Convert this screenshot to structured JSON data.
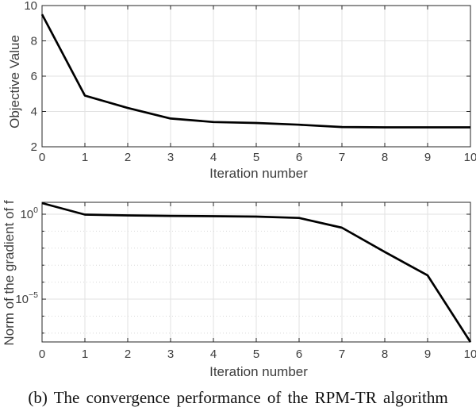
{
  "caption": "(b) The convergence performance of the RPM-TR algorithm",
  "colors": {
    "background": "#ffffff",
    "line": "#000000",
    "frame": "#262626",
    "grid_major": "#e2e2e2",
    "grid_minor": "#d9d9d9",
    "tick_text": "#3d3d3d",
    "label_text": "#3d3d3d"
  },
  "chart_data": [
    {
      "type": "line",
      "title": "",
      "xlabel": "Iteration number",
      "ylabel": "Objective Value",
      "yscale": "linear",
      "x": [
        0,
        1,
        2,
        3,
        4,
        5,
        6,
        7,
        8,
        9,
        10
      ],
      "values": [
        9.5,
        4.9,
        4.2,
        3.6,
        3.4,
        3.35,
        3.25,
        3.12,
        3.1,
        3.1,
        3.1
      ],
      "xlim": [
        0,
        10
      ],
      "ylim": [
        2,
        10
      ],
      "xticks": [
        0,
        1,
        2,
        3,
        4,
        5,
        6,
        7,
        8,
        9,
        10
      ],
      "yticks": [
        2,
        4,
        6,
        8,
        10
      ],
      "grid": "major"
    },
    {
      "type": "line",
      "title": "",
      "xlabel": "Iteration number",
      "ylabel": "Norm of the gradient of f",
      "yscale": "log",
      "x": [
        0,
        1,
        2,
        3,
        4,
        5,
        6,
        7,
        8,
        9,
        10
      ],
      "values": [
        4.5,
        0.95,
        0.85,
        0.8,
        0.76,
        0.72,
        0.6,
        0.16,
        0.006,
        0.00025,
        3e-08
      ],
      "xlim": [
        0,
        10
      ],
      "ylim_log10": [
        -7.52,
        0.7
      ],
      "xticks": [
        0,
        1,
        2,
        3,
        4,
        5,
        6,
        7,
        8,
        9,
        10
      ],
      "yticks_major": [
        {
          "exponent": 0,
          "label": "10^0"
        },
        {
          "exponent": -5,
          "label": "10^−5"
        }
      ],
      "yticks_minor_exponents": [
        -1,
        -2,
        -3,
        -4,
        -6,
        -7
      ],
      "grid": "major+minor-dotted",
      "legend": null
    }
  ]
}
